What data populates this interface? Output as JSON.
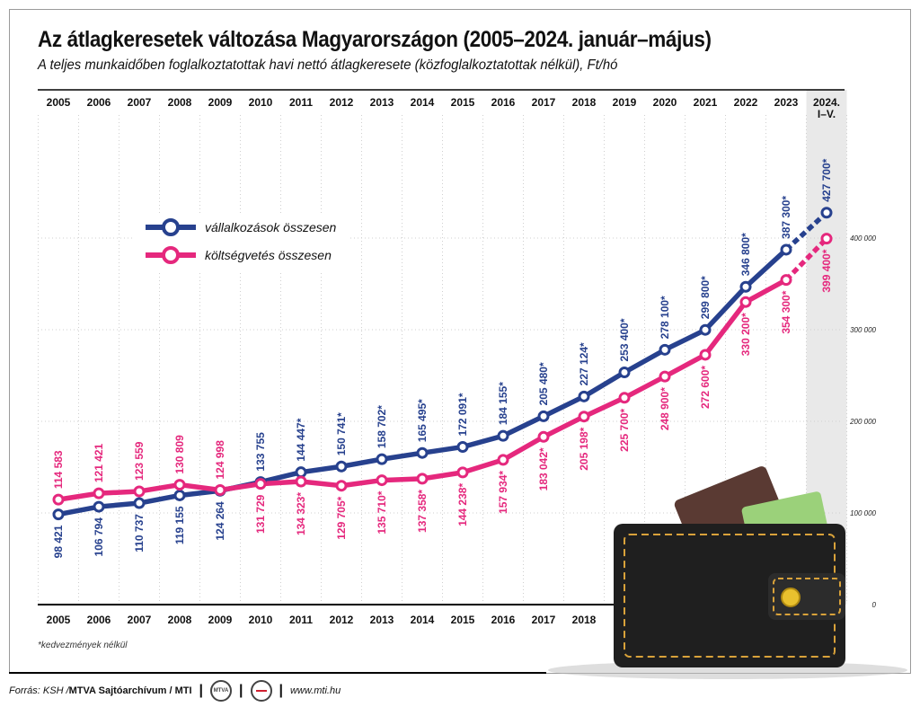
{
  "title": "Az átlagkeresetek változása Magyarországon (2005–2024. január–május)",
  "subtitle": "A teljes munkaidőben foglalkoztatottak havi nettó átlagkeresete (közfoglalkoztatottak nélkül), Ft/hó",
  "footnote": "*kedvezmények nélkül",
  "footer": {
    "source_prefix": "Forrás: KSH / ",
    "source_bold": "MTVA Sajtóarchívum / MTI",
    "logo1_text": "MTVA",
    "url": "www.mti.hu"
  },
  "colors": {
    "business": "#27418e",
    "budget": "#e5287d",
    "grid": "#cfcfcf",
    "highlight": "#e9e9e9"
  },
  "chart_data": {
    "type": "line",
    "title": "Az átlagkeresetek változása Magyarországon (2005–2024. január–május)",
    "ylabel": "Ft/hó",
    "ylim": [
      0,
      500000
    ],
    "y_ticks": [
      "0",
      "100 000",
      "200 000",
      "300 000",
      "400 000"
    ],
    "y_tick_values": [
      0,
      100000,
      200000,
      300000,
      400000
    ],
    "categories": [
      "2005",
      "2006",
      "2007",
      "2008",
      "2009",
      "2010",
      "2011",
      "2012",
      "2013",
      "2014",
      "2015",
      "2016",
      "2017",
      "2018",
      "2019",
      "2020",
      "2021",
      "2022",
      "2023",
      "2024. I–V."
    ],
    "top_labels": [
      "2005",
      "2006",
      "2007",
      "2008",
      "2009",
      "2010",
      "2011",
      "2012",
      "2013",
      "2014",
      "2015",
      "2016",
      "2017",
      "2018",
      "2019",
      "2020",
      "2021",
      "2022",
      "2023",
      "2024.",
      "I–V."
    ],
    "bottom_labels": [
      "2005",
      "2006",
      "2007",
      "2008",
      "2009",
      "2010",
      "2011",
      "2012",
      "2013",
      "2014",
      "2015",
      "2016",
      "2017",
      "2018"
    ],
    "legend_placement": "top-left",
    "grid": true,
    "last_segment_dashed": true,
    "series": [
      {
        "name": "vállalkozások összesen",
        "values": [
          98421,
          106794,
          110737,
          119155,
          124264,
          133755,
          144447,
          150741,
          158702,
          165495,
          172091,
          184155,
          205480,
          227124,
          253400,
          278100,
          299800,
          346800,
          387300,
          427700
        ],
        "labels": [
          "98 421",
          "106 794",
          "110 737",
          "119 155",
          "124 264",
          "133 755",
          "144 447*",
          "150 741*",
          "158 702*",
          "165 495*",
          "172 091*",
          "184 155*",
          "205 480*",
          "227 124*",
          "253 400*",
          "278 100*",
          "299 800*",
          "346 800*",
          "387 300*",
          "427 700*"
        ]
      },
      {
        "name": "költségvetés összesen",
        "values": [
          114583,
          121421,
          123559,
          130809,
          124998,
          131729,
          134323,
          129705,
          135710,
          137358,
          144238,
          157934,
          183042,
          205198,
          225700,
          248900,
          272600,
          330200,
          354300,
          399400
        ],
        "labels": [
          "114 583",
          "121 421",
          "123 559",
          "130 809",
          "124 998",
          "131 729",
          "134 323*",
          "129 705*",
          "135 710*",
          "137 358*",
          "144 238*",
          "157 934*",
          "183 042*",
          "205 198*",
          "225 700*",
          "248 900*",
          "272 600*",
          "330 200*",
          "354 300*",
          "399 400*"
        ]
      }
    ]
  }
}
